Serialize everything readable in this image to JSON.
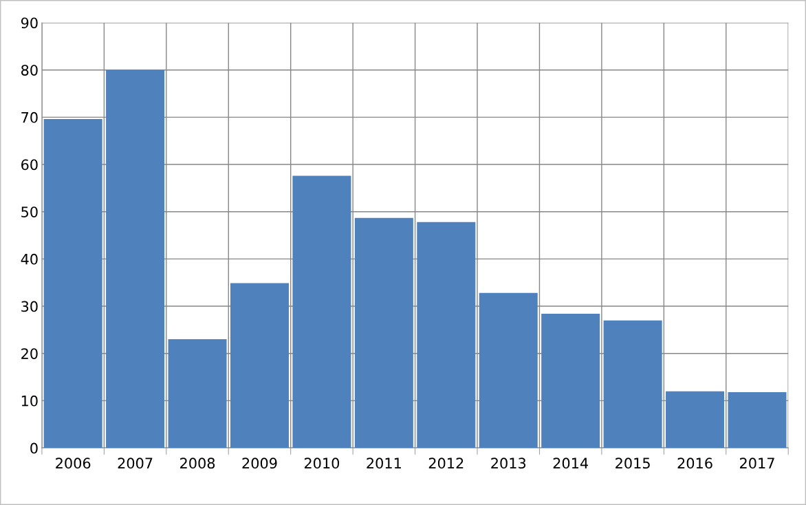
{
  "chart_data": {
    "type": "bar",
    "categories": [
      "2006",
      "2007",
      "2008",
      "2009",
      "2010",
      "2011",
      "2012",
      "2013",
      "2014",
      "2015",
      "2016",
      "2017"
    ],
    "values": [
      69.6,
      80,
      23,
      34.9,
      57.6,
      48.7,
      47.8,
      32.8,
      28.4,
      27,
      12,
      11.8
    ],
    "color": "#4f81bd",
    "ylim": [
      0,
      90
    ],
    "yticks": [
      0,
      10,
      20,
      30,
      40,
      50,
      60,
      70,
      80,
      90
    ],
    "grid": true
  }
}
